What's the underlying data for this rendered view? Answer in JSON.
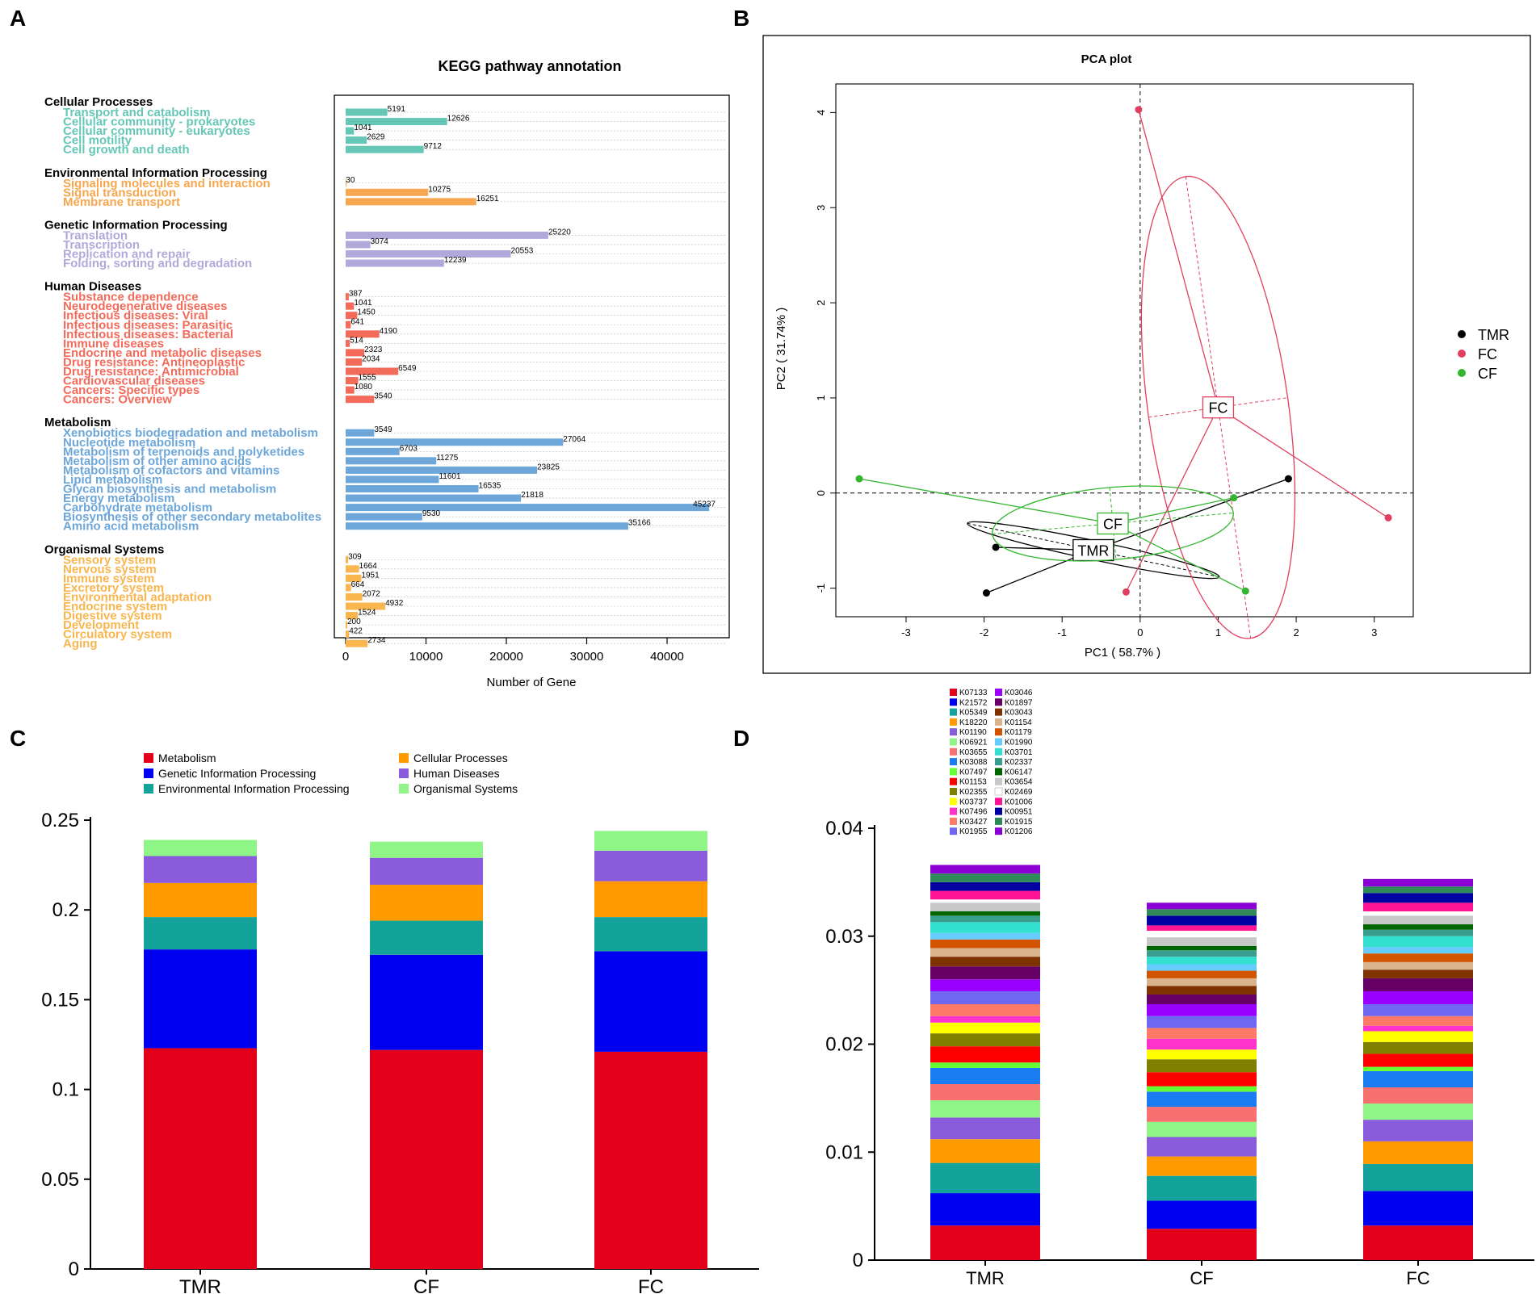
{
  "panel_labels": [
    "A",
    "B",
    "C",
    "D"
  ],
  "chart_data": [
    {
      "id": "A",
      "type": "bar",
      "orientation": "horizontal",
      "title": "KEGG pathway annotation",
      "xlabel": "Number of Gene",
      "xlim": [
        0,
        47000
      ],
      "xticks": [
        0,
        10000,
        20000,
        30000,
        40000
      ],
      "groups": [
        {
          "name": "Cellular Processes",
          "color": "#66C7B6",
          "items": [
            {
              "label": "Transport and catabolism",
              "value": 5191
            },
            {
              "label": "Cellular community - prokaryotes",
              "value": 12626
            },
            {
              "label": "Cellular community - eukaryotes",
              "value": 1041
            },
            {
              "label": "Cell motility",
              "value": 2629
            },
            {
              "label": "Cell growth and death",
              "value": 9712
            }
          ]
        },
        {
          "name": "Environmental Information Processing",
          "color": "#F7A74F",
          "items": [
            {
              "label": "Signaling molecules and interaction",
              "value": 30
            },
            {
              "label": "Signal transduction",
              "value": 10275
            },
            {
              "label": "Membrane transport",
              "value": 16251
            }
          ]
        },
        {
          "name": "Genetic Information Processing",
          "color": "#B2A9DB",
          "items": [
            {
              "label": "Translation",
              "value": 25220
            },
            {
              "label": "Transcription",
              "value": 3074
            },
            {
              "label": "Replication and repair",
              "value": 20553
            },
            {
              "label": "Folding, sorting and degradation",
              "value": 12239
            }
          ]
        },
        {
          "name": "Human Diseases",
          "color": "#F26B5B",
          "items": [
            {
              "label": "Substance dependence",
              "value": 387
            },
            {
              "label": "Neurodegenerative diseases",
              "value": 1041
            },
            {
              "label": "Infectious diseases: Viral",
              "value": 1450
            },
            {
              "label": "Infectious diseases: Parasitic",
              "value": 641
            },
            {
              "label": "Infectious diseases: Bacterial",
              "value": 4190
            },
            {
              "label": "Immune diseases",
              "value": 514
            },
            {
              "label": "Endocrine and metabolic diseases",
              "value": 2323
            },
            {
              "label": "Drug resistance: Antineoplastic",
              "value": 2034
            },
            {
              "label": "Drug resistance: Antimicrobial",
              "value": 6549
            },
            {
              "label": "Cardiovascular diseases",
              "value": 1555
            },
            {
              "label": "Cancers: Specific types",
              "value": 1080
            },
            {
              "label": "Cancers: Overview",
              "value": 3540
            }
          ]
        },
        {
          "name": "Metabolism",
          "color": "#6DA7DA",
          "items": [
            {
              "label": "Xenobiotics biodegradation and metabolism",
              "value": 3549
            },
            {
              "label": "Nucleotide metabolism",
              "value": 27064
            },
            {
              "label": "Metabolism of terpenoids and polyketides",
              "value": 6703
            },
            {
              "label": "Metabolism of other amino acids",
              "value": 11275
            },
            {
              "label": "Metabolism of cofactors and vitamins",
              "value": 23825
            },
            {
              "label": "Lipid metabolism",
              "value": 11601
            },
            {
              "label": "Glycan biosynthesis and metabolism",
              "value": 16535
            },
            {
              "label": "Energy metabolism",
              "value": 21818
            },
            {
              "label": "Carbohydrate metabolism",
              "value": 45237
            },
            {
              "label": "Biosynthesis of other secondary metabolites",
              "value": 9530
            },
            {
              "label": "Amino acid metabolism",
              "value": 35166
            }
          ]
        },
        {
          "name": "Organismal Systems",
          "color": "#F9B64E",
          "items": [
            {
              "label": "Sensory system",
              "value": 309
            },
            {
              "label": "Nervous system",
              "value": 1664
            },
            {
              "label": "Immune system",
              "value": 1951
            },
            {
              "label": "Excretory system",
              "value": 664
            },
            {
              "label": "Environmental adaptation",
              "value": 2072
            },
            {
              "label": "Endocrine system",
              "value": 4932
            },
            {
              "label": "Digestive system",
              "value": 1524
            },
            {
              "label": "Development",
              "value": 200
            },
            {
              "label": "Circulatory system",
              "value": 422
            },
            {
              "label": "Aging",
              "value": 2734
            }
          ]
        }
      ]
    },
    {
      "id": "B",
      "type": "scatter",
      "title": "PCA plot",
      "xlabel": "PC1 ( 58.7% )",
      "ylabel": "PC2 ( 31.74% )",
      "xlim": [
        -3.9,
        3.5
      ],
      "ylim": [
        -1.3,
        4.3
      ],
      "xticks": [
        -3,
        -2,
        -1,
        0,
        1,
        2,
        3
      ],
      "yticks": [
        -1,
        0,
        1,
        2,
        3,
        4
      ],
      "series": [
        {
          "name": "TMR",
          "color": "#000000",
          "centroid": [
            -0.6,
            -0.6
          ],
          "points": [
            [
              -1.85,
              -0.57
            ],
            [
              -1.97,
              -1.05
            ],
            [
              1.9,
              0.15
            ]
          ],
          "ellipse": {
            "rx": 1.65,
            "ry": 0.1,
            "angle_deg": 12
          }
        },
        {
          "name": "FC",
          "color": "#E0405E",
          "centroid": [
            1.0,
            0.9
          ],
          "points": [
            [
              -0.02,
              4.03
            ],
            [
              3.18,
              -0.26
            ],
            [
              -0.18,
              -1.04
            ]
          ],
          "ellipse": {
            "rx": 0.9,
            "ry": 2.45,
            "angle_deg": -8
          }
        },
        {
          "name": "CF",
          "color": "#33B52E",
          "centroid": [
            -0.35,
            -0.32
          ],
          "points": [
            [
              -3.6,
              0.15
            ],
            [
              1.2,
              -0.05
            ],
            [
              1.35,
              -1.03
            ]
          ],
          "ellipse": {
            "rx": 1.55,
            "ry": 0.38,
            "angle_deg": -5
          }
        }
      ],
      "legend": "right"
    },
    {
      "id": "C",
      "type": "bar",
      "stacked": true,
      "categories": [
        "TMR",
        "CF",
        "FC"
      ],
      "ylim": [
        0,
        0.25
      ],
      "yticks": [
        "0",
        "0.05",
        "0.1",
        "0.15",
        "0.2",
        "0.25"
      ],
      "series": [
        {
          "name": "Metabolism",
          "color": "#E2001A",
          "values": [
            0.123,
            0.122,
            0.121
          ]
        },
        {
          "name": "Genetic Information Processing",
          "color": "#0000F0",
          "values": [
            0.055,
            0.053,
            0.056
          ]
        },
        {
          "name": "Environmental Information Processing",
          "color": "#14A39A",
          "values": [
            0.018,
            0.019,
            0.019
          ]
        },
        {
          "name": "Cellular Processes",
          "color": "#FF9B00",
          "values": [
            0.019,
            0.02,
            0.02
          ]
        },
        {
          "name": "Human Diseases",
          "color": "#8A5CDB",
          "values": [
            0.015,
            0.015,
            0.017
          ]
        },
        {
          "name": "Organismal Systems",
          "color": "#8EF586",
          "values": [
            0.009,
            0.009,
            0.011
          ]
        }
      ],
      "legend": "top"
    },
    {
      "id": "D",
      "type": "bar",
      "stacked": true,
      "categories": [
        "TMR",
        "CF",
        "FC"
      ],
      "ylim": [
        0,
        0.04
      ],
      "yticks": [
        "0",
        "0.01",
        "0.02",
        "0.03",
        "0.04"
      ],
      "series": [
        {
          "name": "K07133",
          "color": "#E2001A",
          "values": [
            0.0032,
            0.0029,
            0.0032
          ]
        },
        {
          "name": "K21572",
          "color": "#0000F0",
          "values": [
            0.003,
            0.0026,
            0.0032
          ]
        },
        {
          "name": "K05349",
          "color": "#14A39A",
          "values": [
            0.0028,
            0.0023,
            0.0025
          ]
        },
        {
          "name": "K18220",
          "color": "#FF9B00",
          "values": [
            0.0022,
            0.0018,
            0.0021
          ]
        },
        {
          "name": "K01190",
          "color": "#8A5CDB",
          "values": [
            0.002,
            0.0018,
            0.002
          ]
        },
        {
          "name": "K06921",
          "color": "#8EF586",
          "values": [
            0.0016,
            0.0014,
            0.0015
          ]
        },
        {
          "name": "K03655",
          "color": "#F97070",
          "values": [
            0.0015,
            0.0014,
            0.0015
          ]
        },
        {
          "name": "K03088",
          "color": "#1A7CF2",
          "values": [
            0.0015,
            0.0014,
            0.0015
          ]
        },
        {
          "name": "K07497",
          "color": "#66FF33",
          "values": [
            0.0005,
            0.0005,
            0.0004
          ]
        },
        {
          "name": "K01153",
          "color": "#FF0000",
          "values": [
            0.0015,
            0.0013,
            0.0012
          ]
        },
        {
          "name": "K02355",
          "color": "#7F7F00",
          "values": [
            0.0012,
            0.0012,
            0.0011
          ]
        },
        {
          "name": "K03737",
          "color": "#FFFF00",
          "values": [
            0.001,
            0.0009,
            0.001
          ]
        },
        {
          "name": "K07496",
          "color": "#FF33CC",
          "values": [
            0.0006,
            0.001,
            0.0005
          ]
        },
        {
          "name": "K03427",
          "color": "#FF7A66",
          "values": [
            0.0011,
            0.001,
            0.0009
          ]
        },
        {
          "name": "K01955",
          "color": "#6F66F2",
          "values": [
            0.0012,
            0.0011,
            0.0011
          ]
        },
        {
          "name": "K03046",
          "color": "#9900FF",
          "values": [
            0.0011,
            0.0011,
            0.0012
          ]
        },
        {
          "name": "K01897",
          "color": "#660066",
          "values": [
            0.0012,
            0.0009,
            0.0012
          ]
        },
        {
          "name": "K03043",
          "color": "#7F3300",
          "values": [
            0.0009,
            0.0008,
            0.0008
          ]
        },
        {
          "name": "K01154",
          "color": "#D9B38C",
          "values": [
            0.0008,
            0.0007,
            0.0007
          ]
        },
        {
          "name": "K01179",
          "color": "#D35400",
          "values": [
            0.0008,
            0.0007,
            0.0008
          ]
        },
        {
          "name": "K01990",
          "color": "#66CCFF",
          "values": [
            0.0006,
            0.0006,
            0.0006
          ]
        },
        {
          "name": "K03701",
          "color": "#33E0D0",
          "values": [
            0.001,
            0.0007,
            0.001
          ]
        },
        {
          "name": "K02337",
          "color": "#3A9E8E",
          "values": [
            0.0006,
            0.0006,
            0.0006
          ]
        },
        {
          "name": "K06147",
          "color": "#006600",
          "values": [
            0.0004,
            0.0004,
            0.0005
          ]
        },
        {
          "name": "K03654",
          "color": "#C8C8C8",
          "values": [
            0.0008,
            0.0008,
            0.0008
          ]
        },
        {
          "name": "K02469",
          "color": "#FFFFFF",
          "values": [
            0.0003,
            0.0006,
            0.0004
          ]
        },
        {
          "name": "K01006",
          "color": "#FF1493",
          "values": [
            0.0008,
            0.0005,
            0.0008
          ]
        },
        {
          "name": "K00951",
          "color": "#0000A0",
          "values": [
            0.0008,
            0.0009,
            0.0009
          ]
        },
        {
          "name": "K01915",
          "color": "#2E8B57",
          "values": [
            0.0008,
            0.0006,
            0.0006
          ]
        },
        {
          "name": "K01206",
          "color": "#8B00D5",
          "values": [
            0.0008,
            0.0006,
            0.0007
          ]
        }
      ],
      "legend": "top-left"
    }
  ]
}
